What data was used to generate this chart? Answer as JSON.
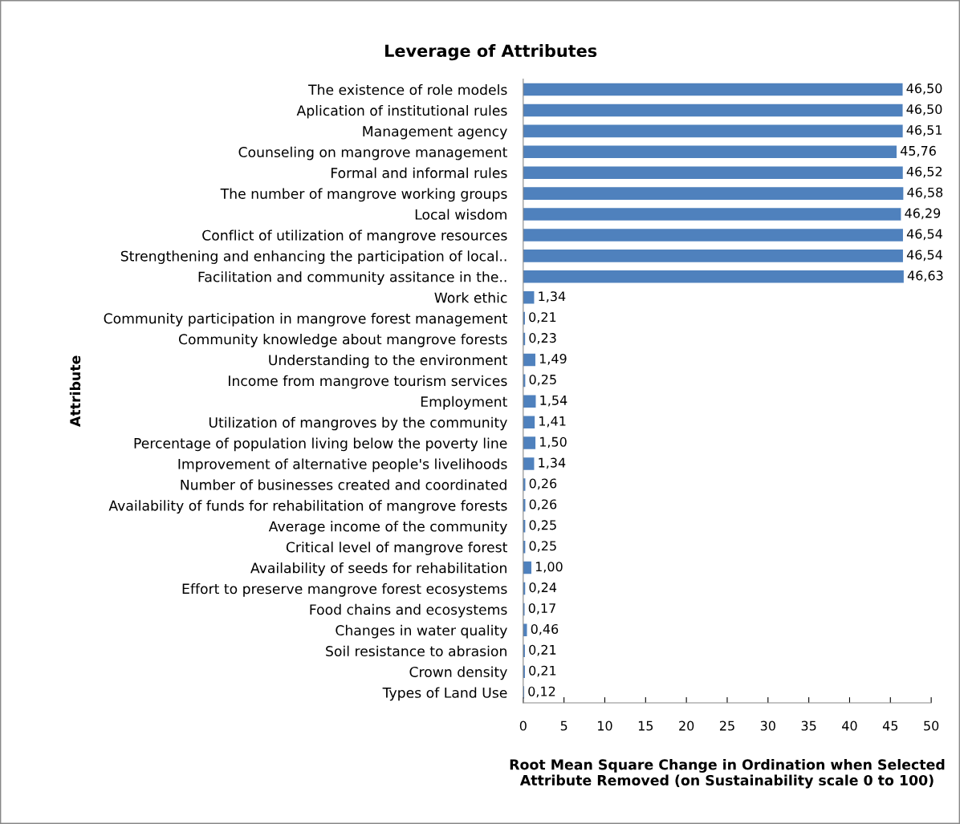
{
  "chart_data": {
    "type": "bar",
    "orientation": "horizontal",
    "title": "Leverage of Attributes",
    "xlabel": "Root Mean Square Change in Ordination when Selected\nAttribute Removed (on Sustainability scale 0 to 100)",
    "ylabel": "Attribute",
    "categories": [
      "The existence of role models",
      "Aplication of institutional rules",
      "Management agency",
      "Counseling on mangrove management",
      "Formal and informal rules",
      "The number of mangrove working groups",
      "Local wisdom",
      "Conflict of utilization of mangrove resources",
      "Strengthening and enhancing the participation of local..",
      "Facilitation and community assitance in the..",
      "Work ethic",
      "Community participation in mangrove forest management",
      "Community knowledge about mangrove forests",
      "Understanding to the environment",
      "Income from mangrove tourism services",
      "Employment",
      "Utilization of mangroves by the community",
      "Percentage of population living below the poverty line",
      "Improvement of alternative people's livelihoods",
      "Number of businesses created and coordinated",
      "Availability of funds for rehabilitation of mangrove forests",
      "Average income of the community",
      "Critical level of mangrove forest",
      "Availability of seeds for rehabilitation",
      "Effort to preserve mangrove forest ecosystems",
      "Food chains and ecosystems",
      "Changes in water quality",
      "Soil resistance to abrasion",
      "Crown density",
      "Types of Land Use"
    ],
    "values": [
      46.5,
      46.5,
      46.51,
      45.76,
      46.52,
      46.58,
      46.29,
      46.54,
      46.54,
      46.63,
      1.34,
      0.21,
      0.23,
      1.49,
      0.25,
      1.54,
      1.41,
      1.5,
      1.34,
      0.26,
      0.26,
      0.25,
      0.25,
      1.0,
      0.24,
      0.17,
      0.46,
      0.21,
      0.21,
      0.12
    ],
    "value_labels": [
      "46,50",
      "46,50",
      "46,51",
      "45,76",
      "46,52",
      "46,58",
      "46,29",
      "46,54",
      "46,54",
      "46,63",
      "1,34",
      "0,21",
      "0,23",
      "1,49",
      "0,25",
      "1,54",
      "1,41",
      "1,50",
      "1,34",
      "0,26",
      "0,26",
      "0,25",
      "0,25",
      "1,00",
      "0,24",
      "0,17",
      "0,46",
      "0,21",
      "0,21",
      "0,12"
    ],
    "color": "#4f81bd",
    "xlim": [
      0,
      50
    ],
    "xticks": [
      0,
      5,
      10,
      15,
      20,
      25,
      30,
      35,
      40,
      45,
      50
    ],
    "grid": false,
    "legend": false
  }
}
